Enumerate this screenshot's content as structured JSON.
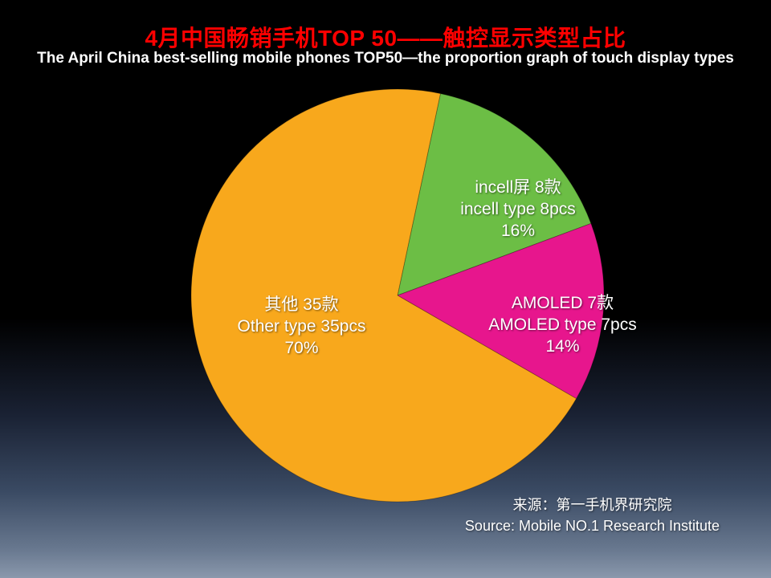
{
  "chart_data": {
    "type": "pie",
    "title": "4月中国畅销手机TOP 50——触控显示类型占比",
    "subtitle": "The April China best-selling mobile phones TOP50—the proportion graph of touch display types",
    "start_angle_deg": 12,
    "direction": "clockwise",
    "legend_position": "none",
    "slices": [
      {
        "name": "incell",
        "label_zh": "incell屏 8款",
        "label_en": "incell type 8pcs",
        "count_pcs": 8,
        "value_percent": 16,
        "percent_label": "16%",
        "color": "#6CBE45"
      },
      {
        "name": "amoled",
        "label_zh": "AMOLED 7款",
        "label_en": "AMOLED type 7pcs",
        "count_pcs": 7,
        "value_percent": 14,
        "percent_label": "14%",
        "color": "#E7168D"
      },
      {
        "name": "other",
        "label_zh": "其他 35款",
        "label_en": "Other type 35pcs",
        "count_pcs": 35,
        "value_percent": 70,
        "percent_label": "70%",
        "color": "#F8A81C"
      }
    ]
  },
  "source": {
    "line_zh": "来源：第一手机界研究院",
    "line_en": "Source: Mobile NO.1 Research Institute"
  },
  "colors": {
    "title": "#FF0000",
    "text": "#FFFFFF",
    "background_top": "#000000",
    "background_bottom": "#8A98AC"
  }
}
